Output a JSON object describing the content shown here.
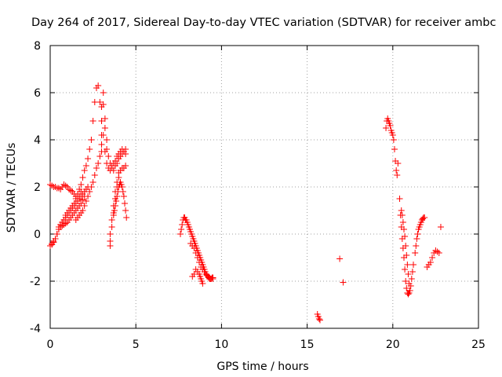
{
  "chart_data": {
    "type": "scatter",
    "title": "Day 264 of 2017, Sidereal Day-to-day VTEC variation (SDTVAR) for receiver ambc",
    "xlabel": "GPS time / hours",
    "ylabel": "SDTVAR / TECUs",
    "xlim": [
      0,
      25
    ],
    "ylim": [
      -4,
      8
    ],
    "xticks": [
      "0",
      "5",
      "10",
      "15",
      "20",
      "25"
    ],
    "yticks": [
      "-4",
      "-2",
      "0",
      "2",
      "4",
      "6",
      "8"
    ],
    "grid": true,
    "marker": "+",
    "color": "#ff0000",
    "series": [
      {
        "name": "SDTVAR",
        "x": [
          0.0,
          0.1,
          0.2,
          0.3,
          0.4,
          0.5,
          0.6,
          0.7,
          0.8,
          0.9,
          1.0,
          1.1,
          1.2,
          1.3,
          1.4,
          1.5,
          1.6,
          1.7,
          1.8,
          1.9,
          2.0,
          2.1,
          2.2,
          2.3,
          2.4,
          2.5,
          2.6,
          2.7,
          2.8,
          2.9,
          3.0,
          3.1,
          3.2,
          3.3,
          3.4,
          3.5,
          3.6,
          3.7,
          3.8,
          3.9,
          4.0,
          4.1,
          4.2,
          4.3,
          4.4,
          0.0,
          0.1,
          0.2,
          0.3,
          0.4,
          0.5,
          0.6,
          0.7,
          0.8,
          0.9,
          1.0,
          1.1,
          1.2,
          1.3,
          1.4,
          1.5,
          1.6,
          1.7,
          1.8,
          0.0,
          0.1,
          0.2,
          0.3,
          0.4,
          0.5,
          0.6,
          0.7,
          0.8,
          0.9,
          1.0,
          1.1,
          1.2,
          1.3,
          1.4,
          1.5,
          1.6,
          1.7,
          1.8,
          1.9,
          2.0,
          0.5,
          0.6,
          0.7,
          0.8,
          0.9,
          1.0,
          1.1,
          1.2,
          1.3,
          1.4,
          1.5,
          1.6,
          1.7,
          1.8,
          1.9,
          2.0,
          2.1,
          2.2,
          1.5,
          1.6,
          1.7,
          1.8,
          1.9,
          2.0,
          2.1,
          2.2,
          2.3,
          2.4,
          2.5,
          2.6,
          2.7,
          2.8,
          2.9,
          3.0,
          3.0,
          3.0,
          3.0,
          3.0,
          3.1,
          3.1,
          3.2,
          3.2,
          3.3,
          3.3,
          3.4,
          3.5,
          3.6,
          3.7,
          3.8,
          3.9,
          4.0,
          4.1,
          4.2,
          4.3,
          4.4,
          3.5,
          3.5,
          3.5,
          3.6,
          3.6,
          3.7,
          3.7,
          3.8,
          3.8,
          3.9,
          3.9,
          4.0,
          4.0,
          4.1,
          4.2,
          4.3,
          4.4,
          3.7,
          3.75,
          3.8,
          3.85,
          3.9,
          3.95,
          4.0,
          4.05,
          4.1,
          4.15,
          4.2,
          4.25,
          4.3,
          4.35,
          4.4,
          4.45,
          7.6,
          7.65,
          7.7,
          7.75,
          7.8,
          7.85,
          7.9,
          7.95,
          8.0,
          8.05,
          8.1,
          8.15,
          8.2,
          8.25,
          8.3,
          8.35,
          8.4,
          8.45,
          8.5,
          8.55,
          8.6,
          8.65,
          8.7,
          8.75,
          8.8,
          8.85,
          8.9,
          8.95,
          9.0,
          9.05,
          9.1,
          9.15,
          9.2,
          9.25,
          9.3,
          9.35,
          9.4,
          9.45,
          9.5,
          8.2,
          8.3,
          8.4,
          8.5,
          8.6,
          8.7,
          8.8,
          8.9,
          9.0,
          9.1,
          9.2,
          9.3,
          9.4,
          9.5,
          8.3,
          8.4,
          8.5,
          8.6,
          8.7,
          8.75,
          8.8,
          8.85,
          8.9,
          15.6,
          15.65,
          15.7,
          15.75,
          16.9,
          17.1,
          19.6,
          19.65,
          19.7,
          19.75,
          19.8,
          19.85,
          19.9,
          19.95,
          20.0,
          20.05,
          20.1,
          20.15,
          20.2,
          20.25,
          20.3,
          20.4,
          20.45,
          20.5,
          20.55,
          20.6,
          20.65,
          20.7,
          20.75,
          20.8,
          20.85,
          20.9,
          20.95,
          21.0,
          21.05,
          21.1,
          21.15,
          21.2,
          21.3,
          21.35,
          21.4,
          21.45,
          21.5,
          21.55,
          21.6,
          21.65,
          21.7,
          21.75,
          21.8,
          21.85,
          20.5,
          20.55,
          20.6,
          20.65,
          20.7,
          20.75,
          20.8,
          20.85,
          20.9,
          20.95,
          21.0,
          22.0,
          22.1,
          22.2,
          22.3,
          22.4,
          22.5,
          22.6,
          22.7,
          22.8
        ],
        "y": [
          -0.5,
          -0.4,
          -0.3,
          -0.2,
          0.0,
          0.2,
          0.3,
          0.5,
          0.6,
          0.8,
          0.9,
          1.0,
          1.1,
          1.2,
          1.3,
          1.5,
          1.7,
          1.9,
          2.1,
          2.4,
          2.7,
          2.9,
          3.2,
          3.6,
          4.0,
          4.8,
          5.6,
          6.2,
          6.3,
          5.6,
          4.8,
          4.2,
          3.5,
          3.0,
          2.8,
          2.7,
          2.9,
          3.0,
          3.1,
          3.3,
          3.4,
          3.5,
          3.6,
          3.5,
          3.4,
          2.1,
          2.05,
          2.0,
          2.0,
          1.95,
          1.95,
          1.9,
          2.0,
          2.1,
          2.05,
          2.0,
          1.9,
          1.85,
          1.8,
          1.7,
          1.6,
          1.5,
          1.6,
          1.8,
          -0.5,
          -0.45,
          -0.35,
          -0.2,
          0.0,
          0.2,
          0.3,
          0.35,
          0.4,
          0.45,
          0.5,
          0.6,
          0.7,
          0.8,
          0.9,
          1.0,
          1.1,
          1.2,
          1.3,
          1.45,
          1.6,
          0.3,
          0.4,
          0.5,
          0.6,
          0.7,
          0.8,
          0.9,
          1.0,
          1.1,
          1.2,
          1.3,
          1.4,
          1.5,
          1.6,
          1.7,
          1.8,
          1.9,
          2.0,
          0.6,
          0.7,
          0.8,
          0.9,
          1.0,
          1.2,
          1.4,
          1.6,
          1.8,
          2.0,
          2.2,
          2.5,
          2.8,
          3.0,
          3.3,
          3.5,
          3.8,
          4.2,
          4.8,
          5.4,
          6.0,
          5.5,
          4.9,
          4.5,
          4.0,
          3.6,
          3.3,
          3.0,
          2.8,
          2.7,
          2.9,
          3.0,
          3.2,
          3.3,
          3.4,
          3.5,
          3.6,
          -0.5,
          -0.3,
          0.0,
          0.3,
          0.6,
          0.9,
          1.2,
          1.5,
          1.8,
          2.0,
          2.2,
          2.4,
          2.6,
          2.7,
          2.8,
          2.8,
          2.9,
          0.8,
          1.0,
          1.2,
          1.4,
          1.6,
          1.8,
          2.0,
          2.1,
          2.2,
          2.1,
          2.0,
          1.8,
          1.6,
          1.3,
          1.0,
          0.7,
          0.0,
          0.2,
          0.4,
          0.6,
          0.7,
          0.7,
          0.6,
          0.6,
          0.5,
          0.4,
          0.3,
          0.2,
          0.1,
          0.0,
          -0.1,
          -0.2,
          -0.3,
          -0.4,
          -0.5,
          -0.6,
          -0.7,
          -0.8,
          -0.9,
          -1.0,
          -1.1,
          -1.2,
          -1.3,
          -1.4,
          -1.5,
          -1.6,
          -1.7,
          -1.75,
          -1.8,
          -1.85,
          -1.9,
          -1.9,
          -1.9,
          -1.85,
          -1.85,
          -0.4,
          -0.5,
          -0.6,
          -0.8,
          -1.0,
          -1.2,
          -1.4,
          -1.5,
          -1.6,
          -1.7,
          -1.8,
          -1.85,
          -1.9,
          -1.9,
          -1.8,
          -1.7,
          -1.5,
          -1.6,
          -1.7,
          -1.8,
          -1.9,
          -2.0,
          -2.1,
          -3.4,
          -3.5,
          -3.6,
          -3.65,
          -1.05,
          -2.05,
          4.5,
          4.8,
          4.9,
          4.8,
          4.7,
          4.6,
          4.4,
          4.3,
          4.2,
          4.0,
          3.6,
          3.1,
          2.7,
          2.5,
          3.0,
          1.5,
          0.8,
          0.3,
          -0.2,
          -0.6,
          -1.0,
          -1.5,
          -2.0,
          -2.3,
          -2.5,
          -2.55,
          -2.5,
          -2.4,
          -2.2,
          -1.9,
          -1.6,
          -1.3,
          -0.8,
          -0.5,
          -0.2,
          0.0,
          0.2,
          0.3,
          0.4,
          0.5,
          0.6,
          0.65,
          0.7,
          0.7,
          1.0,
          0.8,
          0.5,
          0.2,
          -0.1,
          -0.5,
          -0.9,
          -1.3,
          -1.7,
          -2.1,
          -2.4,
          -1.4,
          -1.3,
          -1.2,
          -1.0,
          -0.8,
          -0.7,
          -0.75,
          -0.8,
          0.3
        ]
      }
    ]
  }
}
